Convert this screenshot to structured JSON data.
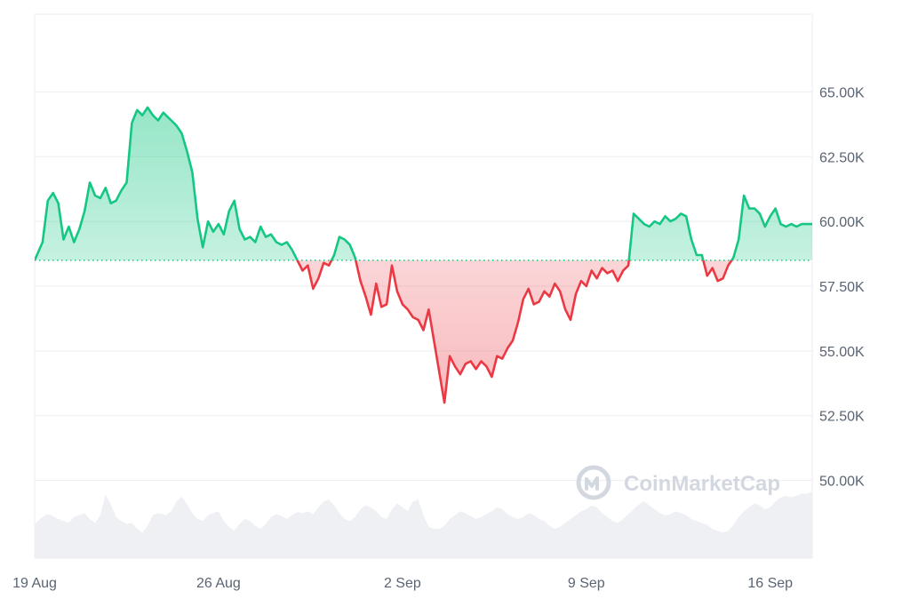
{
  "watermark": {
    "text": "CoinMarketCap"
  },
  "colors": {
    "up": "#16c784",
    "down": "#ea3943",
    "up_fill_top": "#16c784",
    "down_fill": "#ea3943",
    "volume": "#eef0f4",
    "grid": "#eceef2",
    "baseline": "#16c784",
    "axis_text": "#5a6473"
  },
  "chart_data": {
    "type": "area",
    "title": "",
    "xlabel": "",
    "ylabel": "",
    "baseline": 58500,
    "ylim": [
      47000,
      68000
    ],
    "y_ticks": [
      {
        "value": 65000,
        "label": "65.00K"
      },
      {
        "value": 62500,
        "label": "62.50K"
      },
      {
        "value": 60000,
        "label": "60.00K"
      },
      {
        "value": 57500,
        "label": "57.50K"
      },
      {
        "value": 55000,
        "label": "55.00K"
      },
      {
        "value": 52500,
        "label": "52.50K"
      },
      {
        "value": 50000,
        "label": "50.00K"
      }
    ],
    "xlim": [
      0,
      29.6
    ],
    "x_ticks": [
      {
        "value": 0,
        "label": "19 Aug"
      },
      {
        "value": 7,
        "label": "26 Aug"
      },
      {
        "value": 14,
        "label": "2 Sep"
      },
      {
        "value": 21,
        "label": "9 Sep"
      },
      {
        "value": 28,
        "label": "16 Sep"
      }
    ],
    "x_unit": "days since 19 Aug",
    "series": [
      {
        "name": "",
        "x": [
          0,
          0.3,
          0.5,
          0.7,
          0.9,
          1.1,
          1.3,
          1.5,
          1.7,
          1.9,
          2.1,
          2.3,
          2.5,
          2.7,
          2.9,
          3.1,
          3.3,
          3.5,
          3.7,
          3.9,
          4.1,
          4.3,
          4.5,
          4.7,
          4.9,
          5.0,
          5.2,
          5.4,
          5.6,
          5.8,
          6.0,
          6.2,
          6.4,
          6.6,
          6.8,
          7.0,
          7.2,
          7.4,
          7.6,
          7.8,
          8.0,
          8.2,
          8.4,
          8.6,
          8.8,
          9.0,
          9.2,
          9.4,
          9.6,
          9.8,
          10.0,
          10.2,
          10.4,
          10.6,
          10.8,
          11.0,
          11.2,
          11.4,
          11.6,
          11.8,
          12.0,
          12.2,
          12.4,
          12.6,
          12.8,
          13.0,
          13.2,
          13.4,
          13.6,
          13.8,
          14.0,
          14.2,
          14.4,
          14.6,
          14.8,
          15.0,
          15.2,
          15.4,
          15.6,
          15.8,
          16.0,
          16.2,
          16.4,
          16.6,
          16.8,
          17.0,
          17.2,
          17.4,
          17.6,
          17.8,
          18.0,
          18.2,
          18.4,
          18.6,
          18.8,
          19.0,
          19.2,
          19.4,
          19.6,
          19.8,
          20.0,
          20.2,
          20.4,
          20.6,
          20.8,
          21.0,
          21.2,
          21.4,
          21.6,
          21.8,
          22.0,
          22.2,
          22.4,
          22.6,
          22.8,
          23.0,
          23.2,
          23.4,
          23.6,
          23.8,
          24.0,
          24.2,
          24.4,
          24.6,
          24.8,
          25.0,
          25.2,
          25.4,
          25.6,
          25.8,
          26.0,
          26.2,
          26.4,
          26.6,
          26.8,
          27.0,
          27.2,
          27.4,
          27.6,
          27.8,
          28.0,
          28.2,
          28.4,
          28.6,
          28.8,
          29.0,
          29.2,
          29.4,
          29.6
        ],
        "y": [
          58500,
          59200,
          60800,
          61100,
          60700,
          59300,
          59800,
          59200,
          59700,
          60400,
          61500,
          61000,
          60900,
          61300,
          60700,
          60800,
          61200,
          61500,
          63800,
          64300,
          64100,
          64400,
          64100,
          63900,
          64200,
          64100,
          63900,
          63700,
          63400,
          62700,
          61900,
          60100,
          59000,
          60000,
          59600,
          59900,
          59500,
          60400,
          60800,
          59700,
          59300,
          59400,
          59200,
          59800,
          59400,
          59500,
          59200,
          59100,
          59200,
          58900,
          58500,
          58100,
          58300,
          57400,
          57800,
          58400,
          58300,
          58700,
          59400,
          59300,
          59100,
          58600,
          57700,
          57100,
          56400,
          57600,
          56700,
          56800,
          58300,
          57300,
          56800,
          56600,
          56300,
          56200,
          55800,
          56600,
          55400,
          54200,
          53000,
          54800,
          54400,
          54100,
          54500,
          54600,
          54300,
          54600,
          54400,
          54000,
          54800,
          54700,
          55100,
          55400,
          56100,
          57000,
          57400,
          56800,
          56900,
          57300,
          57100,
          57600,
          57300,
          56600,
          56200,
          57200,
          57700,
          57500,
          58100,
          57800,
          58200,
          58000,
          58100,
          57700,
          58100,
          58300,
          60300,
          60100,
          59900,
          59800,
          60000,
          59900,
          60200,
          60000,
          60100,
          60300,
          60200,
          59300,
          58700,
          58700,
          57900,
          58200,
          57700,
          57800,
          58300,
          58600,
          59300,
          61000,
          60500,
          60500,
          60300,
          59800,
          60200,
          60500,
          59900,
          59800,
          59900,
          59800,
          59900,
          59900,
          59900
        ],
        "volume": [
          0.35,
          0.42,
          0.45,
          0.43,
          0.4,
          0.38,
          0.36,
          0.42,
          0.44,
          0.46,
          0.4,
          0.36,
          0.44,
          0.65,
          0.55,
          0.42,
          0.38,
          0.35,
          0.36,
          0.3,
          0.26,
          0.33,
          0.44,
          0.46,
          0.45,
          0.44,
          0.48,
          0.58,
          0.63,
          0.55,
          0.46,
          0.4,
          0.38,
          0.44,
          0.46,
          0.48,
          0.38,
          0.32,
          0.28,
          0.35,
          0.4,
          0.38,
          0.33,
          0.3,
          0.35,
          0.42,
          0.45,
          0.43,
          0.4,
          0.44,
          0.47,
          0.46,
          0.48,
          0.45,
          0.52,
          0.58,
          0.6,
          0.54,
          0.46,
          0.4,
          0.38,
          0.42,
          0.5,
          0.54,
          0.52,
          0.48,
          0.42,
          0.4,
          0.5,
          0.56,
          0.52,
          0.48,
          0.58,
          0.6,
          0.44,
          0.32,
          0.3,
          0.3,
          0.33,
          0.4,
          0.44,
          0.48,
          0.46,
          0.43,
          0.4,
          0.42,
          0.45,
          0.48,
          0.52,
          0.5,
          0.45,
          0.42,
          0.4,
          0.42,
          0.46,
          0.44,
          0.4,
          0.38,
          0.33,
          0.3,
          0.32,
          0.36,
          0.4,
          0.44,
          0.48,
          0.5,
          0.54,
          0.52,
          0.46,
          0.42,
          0.38,
          0.36,
          0.4,
          0.45,
          0.5,
          0.55,
          0.58,
          0.54,
          0.5,
          0.46,
          0.44,
          0.45,
          0.48,
          0.46,
          0.44,
          0.4,
          0.38,
          0.36,
          0.34,
          0.3,
          0.28,
          0.26,
          0.28,
          0.34,
          0.42,
          0.48,
          0.52,
          0.56,
          0.54,
          0.5,
          0.52,
          0.58,
          0.62,
          0.64,
          0.62,
          0.64,
          0.66,
          0.66,
          0.68
        ]
      }
    ],
    "grid": true,
    "y_axis_position": "right"
  }
}
